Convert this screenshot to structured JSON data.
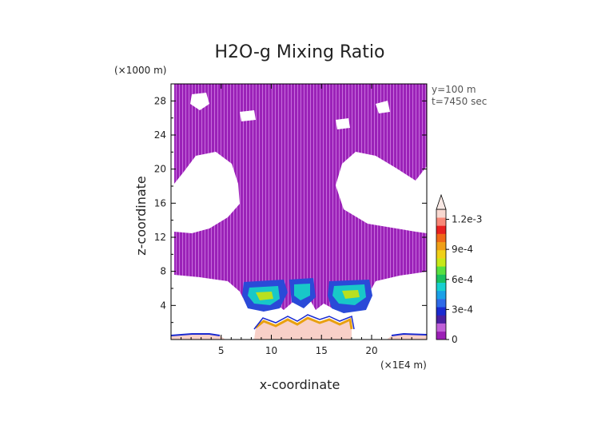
{
  "chart_data": {
    "type": "heatmap",
    "title": "H2O-g Mixing Ratio",
    "xlabel": "x-coordinate",
    "ylabel": "z-coordinate",
    "x_unit": "(×1E4 m)",
    "y_unit": "(×1000 m)",
    "annotation_lines": [
      "y=100 m",
      "t=7450 sec"
    ],
    "xlim": [
      0,
      25.5
    ],
    "ylim": [
      0,
      30
    ],
    "x_ticks": [
      5,
      10,
      15,
      20
    ],
    "y_ticks": [
      4,
      8,
      12,
      16,
      20,
      24,
      28
    ],
    "grid": false,
    "colorbar": {
      "position": "right",
      "min": 0,
      "max": 0.0013,
      "extend": "max",
      "tick_labels": [
        "0",
        "3e-4",
        "6e-4",
        "9e-4",
        "1.2e-3"
      ],
      "tick_values": [
        0,
        0.0003,
        0.0006,
        0.0009,
        0.0012
      ],
      "colors": [
        "#9b1fb5",
        "#c060d8",
        "#4a1fa0",
        "#1a2ad0",
        "#2e6ae8",
        "#1aa0e8",
        "#18d0d0",
        "#1ac060",
        "#58e040",
        "#c8e818",
        "#f0d018",
        "#f0a018",
        "#f06818",
        "#e82020",
        "#f88878",
        "#f8d8d0"
      ]
    },
    "regions": [
      {
        "name": "upper moist layer",
        "x_range": [
          0.5,
          25
        ],
        "z_range": [
          7.5,
          30
        ],
        "value_range": [
          0,
          5e-05
        ]
      },
      {
        "name": "left mid-level cells",
        "x_range": [
          7,
          11
        ],
        "z_range": [
          3,
          7
        ],
        "value_range": [
          0.0001,
          0.0009
        ]
      },
      {
        "name": "central cell",
        "x_range": [
          11.5,
          14
        ],
        "z_range": [
          4,
          6.5
        ],
        "value_range": [
          0.0001,
          0.0008
        ]
      },
      {
        "name": "right mid-level cells",
        "x_range": [
          16,
          19.5
        ],
        "z_range": [
          3,
          7
        ],
        "value_range": [
          0.0001,
          0.0009
        ]
      },
      {
        "name": "surface layer left",
        "x_range": [
          0,
          5
        ],
        "z_range": [
          0,
          0.6
        ],
        "value_range": [
          0.0003,
          0.0013
        ]
      },
      {
        "name": "surface layer center",
        "x_range": [
          8.5,
          17.5
        ],
        "z_range": [
          0,
          2.5
        ],
        "value_range": [
          0.0003,
          0.0013
        ]
      },
      {
        "name": "surface layer right",
        "x_range": [
          20.5,
          25.5
        ],
        "z_range": [
          0,
          0.6
        ],
        "value_range": [
          0.0003,
          0.0013
        ]
      }
    ]
  }
}
